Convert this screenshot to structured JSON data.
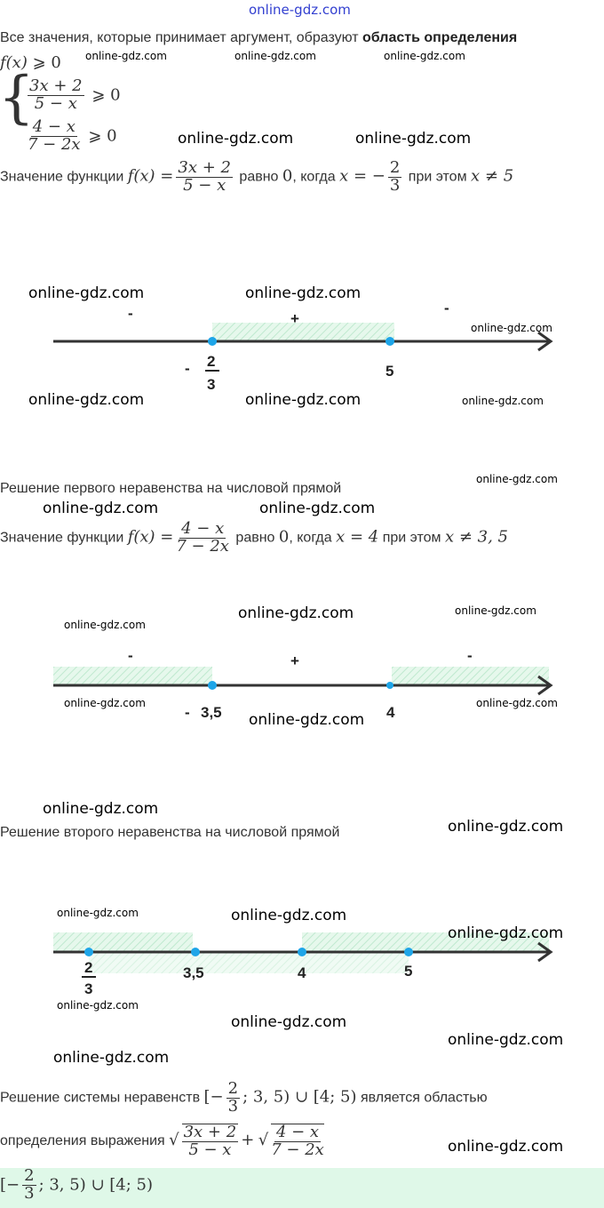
{
  "watermarks": [
    "online-gdz.com"
  ],
  "intro": {
    "text": "Все значения, которые принимает аргумент, образуют ",
    "bold": "область определения"
  },
  "condition": {
    "lhs": "f(x)",
    "op": "⩾",
    "rhs": "0"
  },
  "system": [
    {
      "num": "3x + 2",
      "den": "5 − x",
      "op": "⩾",
      "rhs": "0"
    },
    {
      "num": "4 − x",
      "den": "7 − 2x",
      "op": "⩾",
      "rhs": "0"
    }
  ],
  "line1_text": {
    "pre": "Значение функции ",
    "f": "f(x) =",
    "num": "3x + 2",
    "den": "5 − x",
    "mid": " равно ",
    "zero": "0",
    "mid2": ", когда ",
    "eq": "x = −",
    "fnum": "2",
    "fden": "3",
    "mid3": " при этом ",
    "neq": "x ≠ 5"
  },
  "numberline1": {
    "points": [
      "-2/3",
      "5"
    ],
    "signs": [
      "-",
      "+",
      "-"
    ],
    "label_minus": "-",
    "label_num": "2",
    "label_den": "3",
    "label_5": "5",
    "caption": "Решение первого неравенства на числовой прямой"
  },
  "line2_text": {
    "pre": "Значение функции ",
    "f": "f(x) =",
    "num": "4 − x",
    "den": "7 − 2x",
    "mid": " равно ",
    "zero": "0",
    "mid2": ", когда ",
    "eq": "x = 4",
    "mid3": " при этом ",
    "neq": "x ≠ 3, 5"
  },
  "numberline2": {
    "signs": [
      "-",
      "+",
      "-"
    ],
    "label_minus": "-",
    "label_35": "3,5",
    "label_4": "4",
    "caption": "Решение второго неравенства на числовой прямой"
  },
  "numberline3": {
    "label_num": "2",
    "label_den": "3",
    "label_35": "3,5",
    "label_4": "4",
    "label_5": "5"
  },
  "conclusion": {
    "pre": "Решение системы неравенств ",
    "set_a": "[−",
    "fnum": "2",
    "fden": "3",
    "set_b": "; 3, 5) ∪ [4; 5)",
    "post": " является областью",
    "line2": "определения выражения ",
    "r1num": "3x + 2",
    "r1den": "5 − x",
    "plus": "+",
    "r2num": "4 − x",
    "r2den": "7 − 2x"
  },
  "answer": {
    "set_a": "[−",
    "fnum": "2",
    "fden": "3",
    "set_b": "; 3, 5) ∪ [4; 5)"
  },
  "colors": {
    "point": "#1ea5e8",
    "hatch": "#c8f0d8",
    "answer_bg": "#dff8e8",
    "axis": "#333333"
  }
}
